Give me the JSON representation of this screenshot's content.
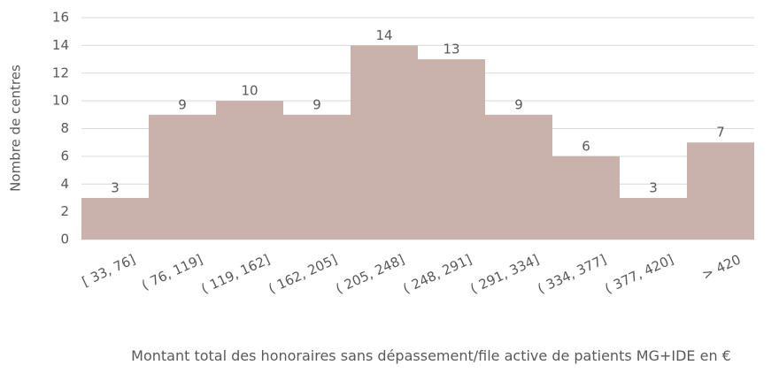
{
  "chart_data": {
    "type": "bar",
    "xlabel": "Montant total des honoraires sans dépassement/file active de patients MG+IDE en €",
    "ylabel": "Nombre de centres",
    "categories": [
      "[ 33, 76]",
      "( 76, 119]",
      "( 119, 162]",
      "( 162, 205]",
      "( 205, 248]",
      "( 248, 291]",
      "( 291, 334]",
      "( 334, 377]",
      "( 377, 420]",
      "> 420"
    ],
    "values": [
      3,
      9,
      10,
      9,
      14,
      13,
      9,
      6,
      3,
      7
    ],
    "color": "#c9b2ab",
    "ylim": [
      0,
      16
    ],
    "yticks": [
      0,
      2,
      4,
      6,
      8,
      10,
      12,
      14,
      16
    ],
    "grid": true
  }
}
